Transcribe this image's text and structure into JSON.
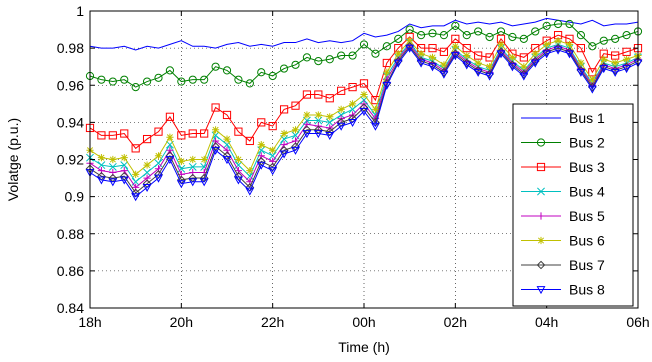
{
  "chart_data": {
    "type": "line",
    "xlabel": "Time (h)",
    "ylabel": "Volatge (p.u.)",
    "xlim": [
      0,
      12
    ],
    "ylim": [
      0.84,
      1.0
    ],
    "grid": true,
    "legend_position": "bottom-right",
    "xticks": [
      {
        "value": 0,
        "label": "18h"
      },
      {
        "value": 2,
        "label": "20h"
      },
      {
        "value": 4,
        "label": "22h"
      },
      {
        "value": 6,
        "label": "00h"
      },
      {
        "value": 8,
        "label": "02h"
      },
      {
        "value": 10,
        "label": "04h"
      },
      {
        "value": 12,
        "label": "06h"
      }
    ],
    "yticks": [
      {
        "value": 0.84,
        "label": "0.84"
      },
      {
        "value": 0.86,
        "label": "0.86"
      },
      {
        "value": 0.88,
        "label": "0.88"
      },
      {
        "value": 0.9,
        "label": "0.9"
      },
      {
        "value": 0.92,
        "label": "0.92"
      },
      {
        "value": 0.94,
        "label": "0.94"
      },
      {
        "value": 0.96,
        "label": "0.96"
      },
      {
        "value": 0.98,
        "label": "0.98"
      },
      {
        "value": 1.0,
        "label": "1"
      }
    ],
    "x": [
      0,
      0.25,
      0.5,
      0.75,
      1,
      1.25,
      1.5,
      1.75,
      2,
      2.25,
      2.5,
      2.75,
      3,
      3.25,
      3.5,
      3.75,
      4,
      4.25,
      4.5,
      4.75,
      5,
      5.25,
      5.5,
      5.75,
      6,
      6.25,
      6.5,
      6.75,
      7,
      7.25,
      7.5,
      7.75,
      8,
      8.25,
      8.5,
      8.75,
      9,
      9.25,
      9.5,
      9.75,
      10,
      10.25,
      10.5,
      10.75,
      11,
      11.25,
      11.5,
      11.75,
      12
    ],
    "series": [
      {
        "name": "Bus 1",
        "color": "#0000ff",
        "marker": "none",
        "values": [
          0.981,
          0.98,
          0.98,
          0.981,
          0.979,
          0.981,
          0.98,
          0.982,
          0.984,
          0.981,
          0.981,
          0.98,
          0.982,
          0.983,
          0.981,
          0.982,
          0.981,
          0.983,
          0.983,
          0.985,
          0.983,
          0.984,
          0.983,
          0.984,
          0.988,
          0.986,
          0.987,
          0.989,
          0.993,
          0.991,
          0.992,
          0.992,
          0.995,
          0.993,
          0.994,
          0.993,
          0.994,
          0.992,
          0.993,
          0.994,
          0.996,
          0.995,
          0.994,
          0.993,
          0.995,
          0.992,
          0.993,
          0.993,
          0.994
        ]
      },
      {
        "name": "Bus 2",
        "color": "#008000",
        "marker": "circle",
        "values": [
          0.965,
          0.963,
          0.962,
          0.963,
          0.959,
          0.962,
          0.964,
          0.968,
          0.962,
          0.963,
          0.963,
          0.97,
          0.968,
          0.963,
          0.961,
          0.967,
          0.965,
          0.969,
          0.971,
          0.975,
          0.973,
          0.974,
          0.976,
          0.976,
          0.982,
          0.977,
          0.981,
          0.985,
          0.99,
          0.987,
          0.988,
          0.987,
          0.992,
          0.987,
          0.989,
          0.986,
          0.989,
          0.986,
          0.985,
          0.989,
          0.992,
          0.993,
          0.993,
          0.987,
          0.981,
          0.984,
          0.985,
          0.987,
          0.989
        ]
      },
      {
        "name": "Bus 3",
        "color": "#ff0000",
        "marker": "square",
        "values": [
          0.937,
          0.933,
          0.933,
          0.934,
          0.926,
          0.931,
          0.935,
          0.943,
          0.933,
          0.934,
          0.934,
          0.948,
          0.944,
          0.935,
          0.93,
          0.94,
          0.938,
          0.947,
          0.949,
          0.955,
          0.955,
          0.953,
          0.957,
          0.959,
          0.961,
          0.952,
          0.972,
          0.98,
          0.986,
          0.98,
          0.98,
          0.978,
          0.985,
          0.98,
          0.976,
          0.975,
          0.985,
          0.977,
          0.975,
          0.98,
          0.984,
          0.987,
          0.985,
          0.98,
          0.967,
          0.977,
          0.976,
          0.978,
          0.98
        ]
      },
      {
        "name": "Bus 4",
        "color": "#00c0c0",
        "marker": "x",
        "values": [
          0.921,
          0.917,
          0.916,
          0.917,
          0.908,
          0.913,
          0.918,
          0.928,
          0.915,
          0.916,
          0.916,
          0.933,
          0.928,
          0.917,
          0.911,
          0.925,
          0.922,
          0.931,
          0.933,
          0.941,
          0.941,
          0.94,
          0.944,
          0.947,
          0.952,
          0.944,
          0.965,
          0.975,
          0.983,
          0.975,
          0.973,
          0.969,
          0.979,
          0.974,
          0.97,
          0.968,
          0.98,
          0.973,
          0.968,
          0.975,
          0.98,
          0.982,
          0.98,
          0.97,
          0.961,
          0.972,
          0.97,
          0.972,
          0.975
        ]
      },
      {
        "name": "Bus 5",
        "color": "#c000c0",
        "marker": "plus",
        "values": [
          0.918,
          0.914,
          0.913,
          0.914,
          0.905,
          0.91,
          0.915,
          0.925,
          0.912,
          0.913,
          0.913,
          0.93,
          0.925,
          0.914,
          0.908,
          0.922,
          0.919,
          0.928,
          0.93,
          0.939,
          0.938,
          0.937,
          0.942,
          0.944,
          0.95,
          0.942,
          0.963,
          0.974,
          0.982,
          0.974,
          0.972,
          0.968,
          0.978,
          0.973,
          0.969,
          0.967,
          0.979,
          0.972,
          0.967,
          0.974,
          0.979,
          0.981,
          0.979,
          0.969,
          0.96,
          0.971,
          0.969,
          0.971,
          0.974
        ]
      },
      {
        "name": "Bus 6",
        "color": "#c0c000",
        "marker": "star",
        "values": [
          0.925,
          0.921,
          0.92,
          0.921,
          0.912,
          0.917,
          0.922,
          0.932,
          0.919,
          0.92,
          0.92,
          0.936,
          0.931,
          0.92,
          0.914,
          0.928,
          0.925,
          0.934,
          0.936,
          0.944,
          0.944,
          0.943,
          0.947,
          0.95,
          0.955,
          0.947,
          0.967,
          0.977,
          0.984,
          0.977,
          0.975,
          0.971,
          0.981,
          0.976,
          0.972,
          0.97,
          0.982,
          0.975,
          0.97,
          0.977,
          0.982,
          0.984,
          0.982,
          0.972,
          0.963,
          0.974,
          0.972,
          0.974,
          0.976
        ]
      },
      {
        "name": "Bus 7",
        "color": "#404040",
        "marker": "diamond",
        "values": [
          0.915,
          0.911,
          0.91,
          0.911,
          0.902,
          0.907,
          0.912,
          0.922,
          0.909,
          0.91,
          0.91,
          0.927,
          0.922,
          0.911,
          0.905,
          0.919,
          0.916,
          0.925,
          0.927,
          0.936,
          0.936,
          0.935,
          0.94,
          0.942,
          0.948,
          0.94,
          0.961,
          0.973,
          0.981,
          0.973,
          0.971,
          0.967,
          0.977,
          0.972,
          0.968,
          0.966,
          0.978,
          0.971,
          0.966,
          0.973,
          0.978,
          0.98,
          0.978,
          0.968,
          0.959,
          0.97,
          0.968,
          0.97,
          0.973
        ]
      },
      {
        "name": "Bus 8",
        "color": "#0000ff",
        "marker": "triangle-down",
        "values": [
          0.913,
          0.909,
          0.908,
          0.909,
          0.9,
          0.905,
          0.91,
          0.92,
          0.907,
          0.908,
          0.908,
          0.925,
          0.92,
          0.909,
          0.903,
          0.917,
          0.914,
          0.923,
          0.925,
          0.934,
          0.934,
          0.933,
          0.938,
          0.94,
          0.946,
          0.938,
          0.96,
          0.972,
          0.98,
          0.972,
          0.97,
          0.966,
          0.976,
          0.971,
          0.967,
          0.965,
          0.977,
          0.97,
          0.965,
          0.972,
          0.977,
          0.979,
          0.977,
          0.967,
          0.958,
          0.969,
          0.967,
          0.969,
          0.972
        ]
      }
    ]
  }
}
